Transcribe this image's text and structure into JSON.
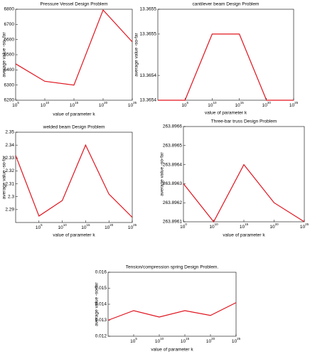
{
  "chart_data": [
    {
      "type": "line",
      "title": "Pressure Vessel Design Problem",
      "ylabel": "average value -so- far",
      "xlabel": "value of parameter k",
      "categories": [
        "10^5",
        "10^10",
        "10^15",
        "10^20",
        "10^25"
      ],
      "series": [
        {
          "color": "#e0141e",
          "values": [
            6440,
            6325,
            6300,
            6795,
            6585
          ]
        }
      ],
      "ylim": [
        6200,
        6800
      ],
      "yticks": [
        6200,
        6300,
        6400,
        6500,
        6600,
        6700,
        6800
      ]
    },
    {
      "type": "line",
      "title": "cantilever beam Design Problem",
      "ylabel": "average value -so-far",
      "xlabel": "value of parameter k",
      "categories": [
        null,
        "10^5",
        "10^10",
        "10^15",
        "10^20",
        "10^25"
      ],
      "series": [
        {
          "color": "#e0141e",
          "values": [
            13.36538,
            13.36538,
            13.36546,
            13.36546,
            13.36538,
            13.36538
          ]
        }
      ],
      "ylim": [
        13.36538,
        13.36549
      ],
      "yticks": [
        {
          "value": 13.36538,
          "label": "13.3654"
        },
        {
          "value": 13.36541,
          "label": "13.3654"
        },
        {
          "value": 13.36546,
          "label": "13.3655"
        },
        {
          "value": 13.36549,
          "label": "13.3655"
        }
      ]
    },
    {
      "type": "line",
      "title": "welded beam Design Problem",
      "ylabel": "average value -so-far",
      "xlabel": "value of parameter k",
      "categories": [
        null,
        "10^5",
        "10^10",
        "10^15",
        "10^20",
        "10^25"
      ],
      "series": [
        {
          "color": "#e0141e",
          "values": [
            2.332,
            2.285,
            2.297,
            2.34,
            2.302,
            2.284
          ]
        }
      ],
      "ylim": [
        2.28,
        2.35
      ],
      "yticks": [
        2.29,
        2.3,
        2.31,
        2.32,
        2.33,
        2.34,
        2.35
      ]
    },
    {
      "type": "line",
      "title": "Three-bar truss Design Problem",
      "ylabel": "average value -so-far",
      "xlabel": "value of parameter k",
      "categories": [
        "10^0",
        "10^10",
        "10^15",
        "10^20",
        "10^25"
      ],
      "series": [
        {
          "color": "#e0141e",
          "values": [
            263.8963,
            263.8961,
            263.8964,
            263.8962,
            263.8961
          ]
        }
      ],
      "ylim": [
        263.8961,
        263.8966
      ],
      "yticks": [
        263.8961,
        263.8962,
        263.8963,
        263.8964,
        263.8965,
        263.8966
      ]
    },
    {
      "type": "line",
      "title": "Tension/compression spring Design Problem.",
      "ylabel": "average value -so-far",
      "xlabel": "value of parameter k",
      "categories": [
        null,
        "10^5",
        "10^10",
        "10^15",
        "10^20",
        "10^25"
      ],
      "series": [
        {
          "color": "#e0141e",
          "values": [
            0.013,
            0.0136,
            0.0132,
            0.0136,
            0.0133,
            0.0141
          ]
        }
      ],
      "ylim": [
        0.012,
        0.016
      ],
      "yticks": [
        0.012,
        0.013,
        0.014,
        0.015,
        0.016
      ]
    }
  ]
}
